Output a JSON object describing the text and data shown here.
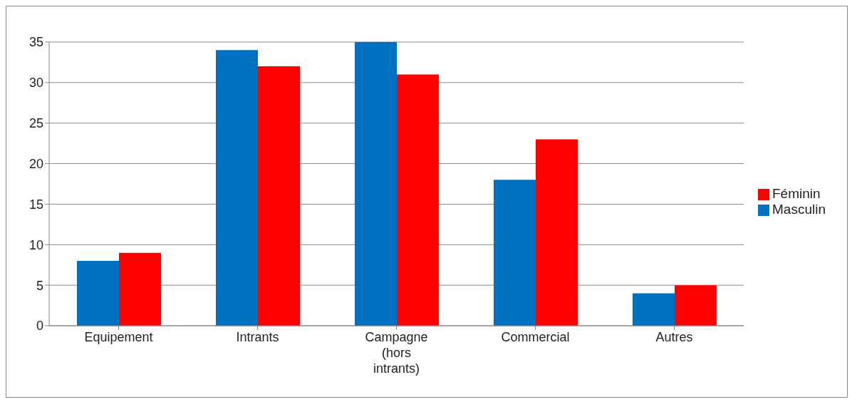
{
  "chart_data": {
    "type": "bar",
    "categories": [
      "Equipement",
      "Intrants",
      "Campagne (hors intrants)",
      "Commercial",
      "Autres"
    ],
    "series": [
      {
        "name": "Masculin",
        "color": "#0070c0",
        "values": [
          8,
          34,
          35,
          18,
          4
        ]
      },
      {
        "name": "Féminin",
        "color": "#ff0000",
        "values": [
          9,
          32,
          31,
          23,
          5
        ]
      }
    ],
    "ylim": [
      0,
      35
    ],
    "yticks": [
      0,
      5,
      10,
      15,
      20,
      25,
      30,
      35
    ],
    "grid": "y",
    "legend": "right"
  }
}
